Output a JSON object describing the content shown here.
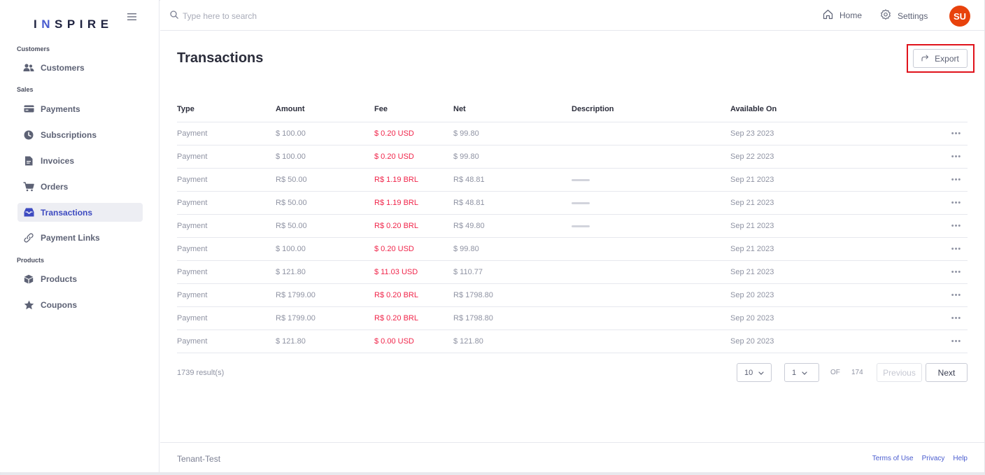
{
  "brand": {
    "logo_pre": "I",
    "logo_accent": "N",
    "logo_post": "SPIRE",
    "accent_color": "#4a5ccf"
  },
  "sidebar": {
    "sections": [
      {
        "label": "Customers"
      },
      {
        "label": "Sales"
      },
      {
        "label": "Products"
      }
    ],
    "items": [
      {
        "label": "Customers",
        "icon": "users-icon"
      },
      {
        "label": "Payments",
        "icon": "card-icon"
      },
      {
        "label": "Subscriptions",
        "icon": "clock-icon"
      },
      {
        "label": "Invoices",
        "icon": "document-icon"
      },
      {
        "label": "Orders",
        "icon": "cart-icon"
      },
      {
        "label": "Transactions",
        "icon": "inbox-icon",
        "active": true
      },
      {
        "label": "Payment Links",
        "icon": "link-icon"
      },
      {
        "label": "Products",
        "icon": "box-icon"
      },
      {
        "label": "Coupons",
        "icon": "star-icon"
      }
    ]
  },
  "topbar": {
    "search_placeholder": "Type here to search",
    "home_label": "Home",
    "settings_label": "Settings",
    "avatar_initials": "SU",
    "avatar_color": "#e8420c"
  },
  "main": {
    "title": "Transactions",
    "export_label": "Export",
    "columns": [
      "Type",
      "Amount",
      "Fee",
      "Net",
      "Description",
      "Available On"
    ],
    "rows": [
      {
        "type": "Payment",
        "amount": "$ 100.00",
        "fee": "$ 0.20 USD",
        "net": "$ 99.80",
        "desc_redacted": false,
        "available": "Sep 23 2023",
        "more": "•••"
      },
      {
        "type": "Payment",
        "amount": "$ 100.00",
        "fee": "$ 0.20 USD",
        "net": "$ 99.80",
        "desc_redacted": false,
        "available": "Sep 22 2023",
        "more": "•••"
      },
      {
        "type": "Payment",
        "amount": "R$ 50.00",
        "fee": "R$ 1.19 BRL",
        "net": "R$ 48.81",
        "desc_redacted": true,
        "available": "Sep 21 2023",
        "more": "•••"
      },
      {
        "type": "Payment",
        "amount": "R$ 50.00",
        "fee": "R$ 1.19 BRL",
        "net": "R$ 48.81",
        "desc_redacted": true,
        "available": "Sep 21 2023",
        "more": "•••"
      },
      {
        "type": "Payment",
        "amount": "R$ 50.00",
        "fee": "R$ 0.20 BRL",
        "net": "R$ 49.80",
        "desc_redacted": true,
        "available": "Sep 21 2023",
        "more": "•••"
      },
      {
        "type": "Payment",
        "amount": "$ 100.00",
        "fee": "$ 0.20 USD",
        "net": "$ 99.80",
        "desc_redacted": false,
        "available": "Sep 21 2023",
        "more": "•••"
      },
      {
        "type": "Payment",
        "amount": "$ 121.80",
        "fee": "$ 11.03 USD",
        "net": "$ 110.77",
        "desc_redacted": false,
        "available": "Sep 21 2023",
        "more": "•••"
      },
      {
        "type": "Payment",
        "amount": "R$ 1799.00",
        "fee": "R$ 0.20 BRL",
        "net": "R$ 1798.80",
        "desc_redacted": false,
        "available": "Sep 20 2023",
        "more": "•••"
      },
      {
        "type": "Payment",
        "amount": "R$ 1799.00",
        "fee": "R$ 0.20 BRL",
        "net": "R$ 1798.80",
        "desc_redacted": false,
        "available": "Sep 20 2023",
        "more": "•••"
      },
      {
        "type": "Payment",
        "amount": "$ 121.80",
        "fee": "$ 0.00 USD",
        "net": "$ 121.80",
        "desc_redacted": false,
        "available": "Sep 20 2023",
        "more": "•••"
      }
    ],
    "fee_color": "#f0254a"
  },
  "pagination": {
    "results": "1739 result(s)",
    "page_size": "10",
    "page": "1",
    "of_label": "OF",
    "total_pages": "174",
    "previous_label": "Previous",
    "next_label": "Next"
  },
  "footer": {
    "tenant": "Tenant-Test",
    "links": [
      "Terms of Use",
      "Privacy",
      "Help"
    ]
  }
}
